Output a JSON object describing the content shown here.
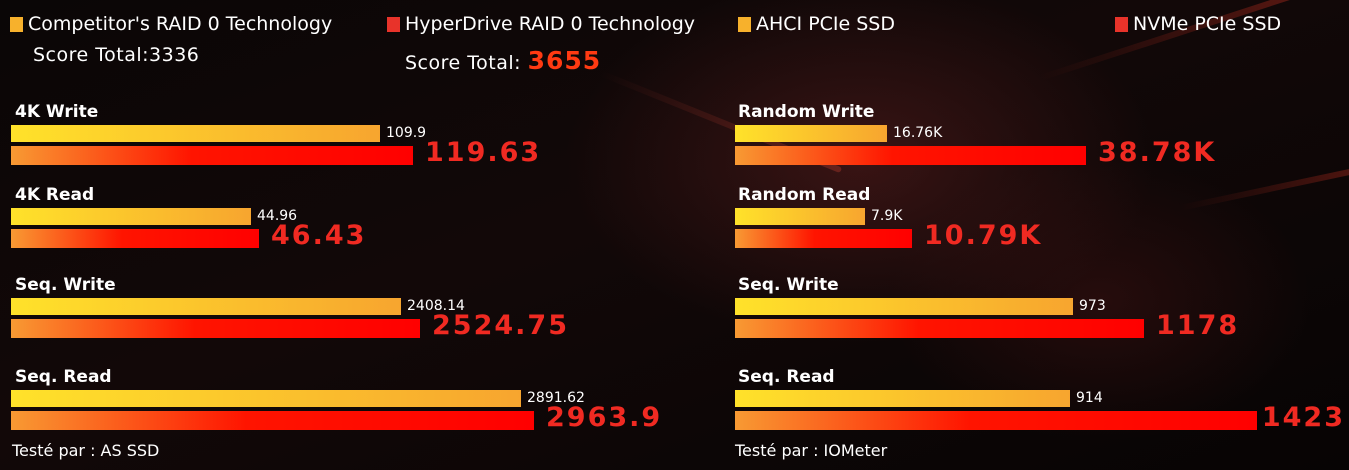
{
  "legend": [
    {
      "label": "Competitor's RAID 0 Technology",
      "color": "#f7b12c"
    },
    {
      "label": "HyperDrive RAID 0 Technology",
      "color": "#e8332a"
    },
    {
      "label": "AHCI PCIe SSD",
      "color": "#f7b12c"
    },
    {
      "label": "NVMe PCIe SSD",
      "color": "#e8332a"
    }
  ],
  "scores": {
    "competitor_label": "Score Total:3336",
    "hyperdrive_label": "Score Total:",
    "hyperdrive_value": "3655"
  },
  "chart_data": [
    {
      "type": "bar",
      "orientation": "horizontal",
      "source": "Testé par : AS SSD",
      "categories": [
        "4K Write",
        "4K Read",
        "Seq. Write",
        "Seq. Read"
      ],
      "series": [
        {
          "name": "Competitor's RAID 0 Technology",
          "values": [
            109.9,
            44.96,
            2408.14,
            2891.62
          ],
          "labels": [
            "109.9",
            "44.96",
            "2408.14",
            "2891.62"
          ]
        },
        {
          "name": "HyperDrive RAID 0 Technology",
          "values": [
            119.63,
            46.43,
            2524.75,
            2963.9
          ],
          "labels": [
            "119.63",
            "46.43",
            "2524.75",
            "2963.9"
          ]
        }
      ]
    },
    {
      "type": "bar",
      "orientation": "horizontal",
      "source": "Testé par : IOMeter",
      "categories": [
        "Random Write",
        "Random Read",
        "Seq. Write",
        "Seq. Read"
      ],
      "series": [
        {
          "name": "AHCI PCIe SSD",
          "values": [
            16760,
            7900,
            973,
            914
          ],
          "labels": [
            "16.76K",
            "7.9K",
            "973",
            "914"
          ]
        },
        {
          "name": "NVMe PCIe SSD",
          "values": [
            38780,
            10790,
            1178,
            1423
          ],
          "labels": [
            "38.78K",
            "10.79K",
            "1178",
            "1423"
          ]
        }
      ]
    }
  ]
}
